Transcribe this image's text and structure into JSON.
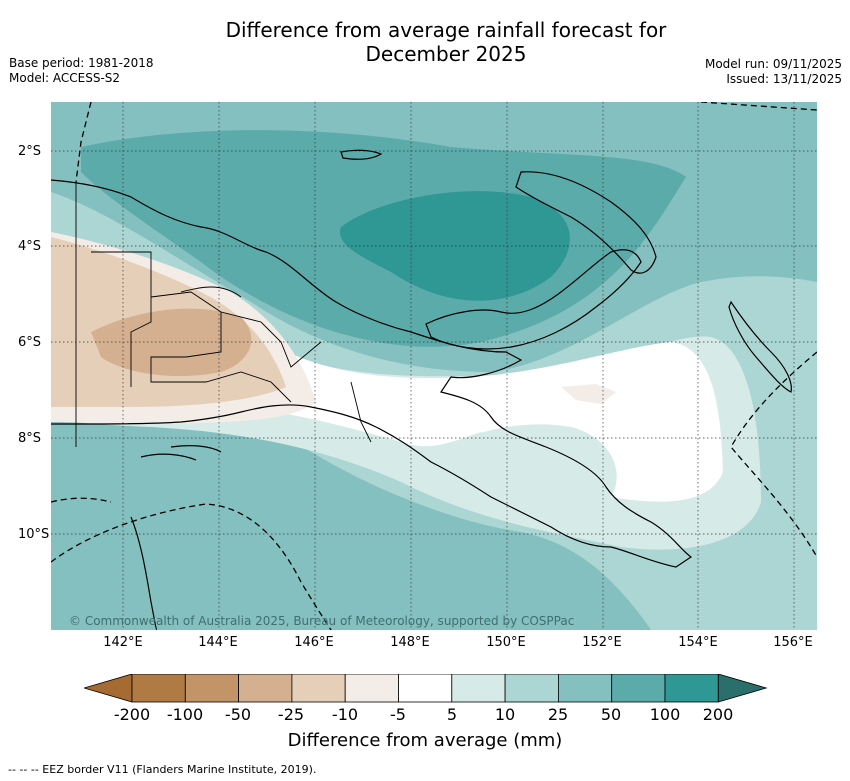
{
  "title_line1": "Difference from average rainfall forecast for",
  "title_line2": "December 2025",
  "meta_left": {
    "base_period": "Base period: 1981-2018",
    "model": "Model: ACCESS-S2"
  },
  "meta_right": {
    "model_run": "Model run: 09/11/2025",
    "issued": "Issued: 13/11/2025"
  },
  "map": {
    "lon_ticks": [
      "142°E",
      "144°E",
      "146°E",
      "148°E",
      "150°E",
      "152°E",
      "154°E",
      "156°E"
    ],
    "lat_ticks": [
      "2°S",
      "4°S",
      "6°S",
      "8°S",
      "10°S"
    ],
    "copyright": "© Commonwealth of Australia 2025, Bureau of Meteorology, supported by COSPPac",
    "grid": true
  },
  "colorbar": {
    "ticks": [
      "-200",
      "-100",
      "-50",
      "-25",
      "-10",
      "-5",
      "5",
      "10",
      "25",
      "50",
      "100",
      "200"
    ],
    "colors": [
      "#a66a33",
      "#b07a45",
      "#c29468",
      "#d4b090",
      "#e6cfb9",
      "#f3ece7",
      "#ffffff",
      "#d6ebe8",
      "#acd6d3",
      "#84c0bf",
      "#5cabab",
      "#2f9794",
      "#2a6f6c"
    ],
    "label": "Difference from average (mm)"
  },
  "footnote": "--  --  -- EEZ border V11 (Flanders Marine Institute, 2019)."
}
